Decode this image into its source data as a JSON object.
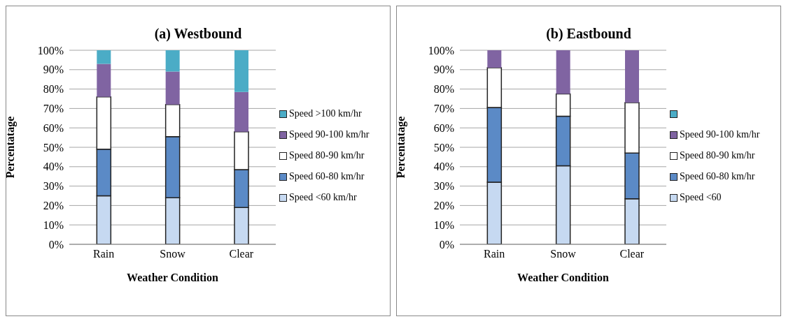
{
  "chart_data": [
    {
      "type": "bar",
      "title": "(a) Westbound",
      "xlabel": "Weather Condition",
      "ylabel": "Percentatage",
      "categories": [
        "Rain",
        "Snow",
        "Clear"
      ],
      "stacked": true,
      "legend": "right",
      "grid": "y",
      "ylim": [
        0,
        100
      ],
      "yticks": [
        {
          "value": 0,
          "label": "0%"
        },
        {
          "value": 10,
          "label": "10%"
        },
        {
          "value": 20,
          "label": "20%"
        },
        {
          "value": 30,
          "label": "30%"
        },
        {
          "value": 40,
          "label": "40%"
        },
        {
          "value": 50,
          "label": "50%"
        },
        {
          "value": 60,
          "label": "60%"
        },
        {
          "value": 70,
          "label": "70%"
        },
        {
          "value": 80,
          "label": "80%"
        },
        {
          "value": 90,
          "label": "90%"
        },
        {
          "value": 100,
          "label": "100%"
        }
      ],
      "series": [
        {
          "name": "Speed <60 km/hr",
          "color": "#c6d9f1",
          "values": [
            25,
            24,
            19
          ]
        },
        {
          "name": "Speed 60-80 km/hr",
          "color": "#5b8ac6",
          "values": [
            24,
            31.5,
            19.5
          ]
        },
        {
          "name": "Speed 80-90 km/hr",
          "color": "#ffffff",
          "values": [
            27,
            16.5,
            19.5
          ]
        },
        {
          "name": "Speed 90-100 km/hr",
          "color": "#8064a2",
          "values": [
            17,
            17,
            20.5
          ]
        },
        {
          "name": "Speed >100 km/hr",
          "color": "#4bacc6",
          "values": [
            7,
            11,
            21.5
          ]
        }
      ]
    },
    {
      "type": "bar",
      "title": "(b) Eastbound",
      "xlabel": "Weather Condition",
      "ylabel": "Percentatage",
      "categories": [
        "Rain",
        "Snow",
        "Clear"
      ],
      "stacked": true,
      "legend": "right",
      "grid": "y",
      "ylim": [
        0,
        100
      ],
      "yticks": [
        {
          "value": 0,
          "label": "0%"
        },
        {
          "value": 10,
          "label": "10%"
        },
        {
          "value": 20,
          "label": "20%"
        },
        {
          "value": 30,
          "label": "30%"
        },
        {
          "value": 40,
          "label": "40%"
        },
        {
          "value": 50,
          "label": "50%"
        },
        {
          "value": 60,
          "label": "60%"
        },
        {
          "value": 70,
          "label": "70%"
        },
        {
          "value": 80,
          "label": "80%"
        },
        {
          "value": 90,
          "label": "90%"
        },
        {
          "value": 100,
          "label": "100%"
        }
      ],
      "series": [
        {
          "name": "Speed <60",
          "color": "#c6d9f1",
          "values": [
            32,
            40.5,
            23.5
          ]
        },
        {
          "name": "Speed 60-80 km/hr",
          "color": "#5b8ac6",
          "values": [
            38.5,
            25.5,
            23.5
          ]
        },
        {
          "name": "Speed 80-90 km/hr",
          "color": "#ffffff",
          "values": [
            20.5,
            11.5,
            26
          ]
        },
        {
          "name": "Speed 90-100 km/hr",
          "color": "#8064a2",
          "values": [
            9,
            22.5,
            27
          ]
        },
        {
          "color": "#4bacc6",
          "values": [
            0,
            0,
            0
          ]
        }
      ]
    }
  ]
}
